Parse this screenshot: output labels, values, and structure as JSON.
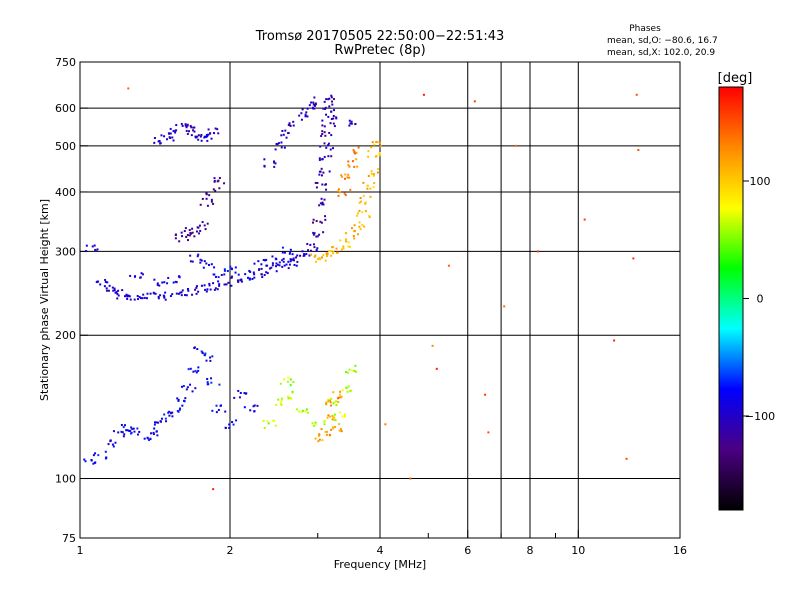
{
  "chart_data": {
    "type": "scatter",
    "title": "Tromsø 20170505 22:50:00−22:51:43",
    "subtitle": "RwPretec (8p)",
    "legend_text": {
      "heading": "Phases",
      "line1": "mean, sd,O: −80.6, 16.7",
      "line2": "mean, sd,X: 102.0, 20.9"
    },
    "xlabel": "Frequency [MHz]",
    "ylabel": "Stationary phase Virtual Height [km]",
    "xscale": "log",
    "yscale": "log",
    "xlim": [
      1,
      16
    ],
    "ylim": [
      75,
      750
    ],
    "grid": true,
    "xticks": [
      1,
      2,
      4,
      6,
      8,
      10,
      16
    ],
    "xtick_labels": [
      "1",
      "2",
      "4",
      "6",
      "8",
      "10",
      "16"
    ],
    "xminor": [
      3,
      5,
      7,
      9
    ],
    "xgrid": [
      2,
      4,
      6,
      7,
      8,
      10
    ],
    "yticks": [
      75,
      100,
      200,
      300,
      400,
      500,
      600,
      750
    ],
    "ytick_labels": [
      "75",
      "100",
      "200",
      "300",
      "400",
      "500",
      "600",
      "750"
    ],
    "ygrid": [
      100,
      200,
      300,
      400,
      500,
      600
    ],
    "colorbar": {
      "label": "[deg]",
      "ticks": [
        100,
        0,
        -100
      ],
      "tick_labels": [
        "100",
        "0",
        "−100"
      ],
      "range": [
        -180,
        180
      ],
      "colormap": [
        "#000000",
        "#4b0082",
        "#0000ff",
        "#00ffff",
        "#00ff00",
        "#ffff00",
        "#ff8800",
        "#ff0000"
      ]
    },
    "series": [
      {
        "trace": "O-mode F-layer trace (~240-300 km)",
        "phase_deg": -95,
        "points": [
          [
            1.05,
            305
          ],
          [
            1.1,
            258
          ],
          [
            1.14,
            250
          ],
          [
            1.18,
            246
          ],
          [
            1.22,
            243
          ],
          [
            1.28,
            241
          ],
          [
            1.35,
            241
          ],
          [
            1.42,
            241
          ],
          [
            1.5,
            242
          ],
          [
            1.58,
            244
          ],
          [
            1.66,
            247
          ],
          [
            1.75,
            250
          ],
          [
            1.85,
            253
          ],
          [
            1.95,
            257
          ],
          [
            2.05,
            261
          ],
          [
            2.15,
            264
          ],
          [
            2.25,
            268
          ],
          [
            2.35,
            272
          ],
          [
            2.45,
            276
          ],
          [
            2.55,
            280
          ],
          [
            2.65,
            285
          ],
          [
            2.75,
            291
          ],
          [
            2.85,
            299
          ]
        ]
      },
      {
        "trace": "O-mode lower bumps",
        "phase_deg": -90,
        "points": [
          [
            1.3,
            265
          ],
          [
            1.45,
            258
          ],
          [
            1.55,
            262
          ],
          [
            1.7,
            290
          ],
          [
            1.8,
            282
          ],
          [
            1.9,
            270
          ],
          [
            2.0,
            275
          ],
          [
            2.3,
            283
          ],
          [
            2.5,
            288
          ],
          [
            2.6,
            300
          ]
        ]
      },
      {
        "trace": "O-mode steep branch to 640 km",
        "phase_deg": -110,
        "points": [
          [
            2.95,
            305
          ],
          [
            3.0,
            325
          ],
          [
            3.02,
            350
          ],
          [
            3.05,
            380
          ],
          [
            3.07,
            410
          ],
          [
            3.1,
            440
          ],
          [
            3.12,
            470
          ],
          [
            3.13,
            500
          ],
          [
            3.14,
            530
          ],
          [
            3.15,
            560
          ],
          [
            3.15,
            600
          ],
          [
            3.14,
            630
          ]
        ]
      },
      {
        "trace": "O-mode second hop (~500-560 km)",
        "phase_deg": -100,
        "points": [
          [
            1.45,
            510
          ],
          [
            1.5,
            520
          ],
          [
            1.55,
            540
          ],
          [
            1.6,
            550
          ],
          [
            1.65,
            545
          ],
          [
            1.7,
            530
          ],
          [
            1.75,
            520
          ],
          [
            1.8,
            525
          ],
          [
            1.85,
            540
          ]
        ]
      },
      {
        "trace": "O-mode mid-height (~320-420 km)",
        "phase_deg": -120,
        "points": [
          [
            1.6,
            320
          ],
          [
            1.65,
            330
          ],
          [
            1.7,
            325
          ],
          [
            1.75,
            340
          ],
          [
            1.8,
            380
          ],
          [
            1.85,
            400
          ],
          [
            1.9,
            420
          ]
        ]
      },
      {
        "trace": "Upper oblique (~450-620 km)",
        "phase_deg": -105,
        "points": [
          [
            2.4,
            460
          ],
          [
            2.5,
            500
          ],
          [
            2.6,
            530
          ],
          [
            2.7,
            560
          ],
          [
            2.8,
            585
          ],
          [
            2.9,
            605
          ],
          [
            3.0,
            620
          ],
          [
            3.2,
            580
          ],
          [
            3.5,
            560
          ]
        ]
      },
      {
        "trace": "X-mode F-layer trace (~290-500 km)",
        "phase_deg": 110,
        "points": [
          [
            3.0,
            290
          ],
          [
            3.1,
            292
          ],
          [
            3.2,
            296
          ],
          [
            3.3,
            302
          ],
          [
            3.4,
            312
          ],
          [
            3.5,
            325
          ],
          [
            3.6,
            340
          ],
          [
            3.7,
            360
          ],
          [
            3.75,
            385
          ],
          [
            3.8,
            410
          ],
          [
            3.85,
            440
          ],
          [
            3.88,
            480
          ],
          [
            3.9,
            500
          ]
        ]
      },
      {
        "trace": "X-mode inner branch",
        "phase_deg": 130,
        "points": [
          [
            3.4,
            400
          ],
          [
            3.45,
            430
          ],
          [
            3.5,
            460
          ],
          [
            3.55,
            490
          ]
        ]
      },
      {
        "trace": "E/Es region (~110-190 km)",
        "phase_deg": -85,
        "points": [
          [
            1.05,
            108
          ],
          [
            1.1,
            112
          ],
          [
            1.15,
            118
          ],
          [
            1.2,
            125
          ],
          [
            1.25,
            128
          ],
          [
            1.3,
            126
          ],
          [
            1.35,
            122
          ],
          [
            1.4,
            125
          ],
          [
            1.45,
            130
          ],
          [
            1.5,
            135
          ],
          [
            1.55,
            140
          ],
          [
            1.6,
            145
          ],
          [
            1.65,
            155
          ],
          [
            1.7,
            170
          ],
          [
            1.75,
            185
          ],
          [
            1.8,
            180
          ],
          [
            1.85,
            160
          ],
          [
            1.9,
            140
          ],
          [
            2.0,
            130
          ],
          [
            2.1,
            150
          ],
          [
            2.2,
            140
          ]
        ]
      },
      {
        "trace": "Mixed phase (~120-180 km)",
        "phase_deg": 60,
        "points": [
          [
            2.4,
            130
          ],
          [
            2.5,
            145
          ],
          [
            2.6,
            160
          ],
          [
            2.7,
            150
          ],
          [
            2.8,
            140
          ],
          [
            3.0,
            130
          ],
          [
            3.2,
            145
          ],
          [
            3.3,
            135
          ],
          [
            3.4,
            155
          ],
          [
            3.5,
            170
          ]
        ]
      },
      {
        "trace": "Orange low patch (~120-150 km)",
        "phase_deg": 120,
        "points": [
          [
            3.05,
            122
          ],
          [
            3.1,
            125
          ],
          [
            3.15,
            135
          ],
          [
            3.2,
            145
          ],
          [
            3.25,
            150
          ],
          [
            3.3,
            128
          ]
        ]
      },
      {
        "trace": "Scattered noise",
        "phase_deg": 150,
        "points": [
          [
            1.25,
            660
          ],
          [
            1.85,
            95
          ],
          [
            4.6,
            100
          ],
          [
            5.1,
            190
          ],
          [
            5.5,
            280
          ],
          [
            6.6,
            125
          ],
          [
            7.1,
            230
          ],
          [
            8.3,
            300
          ],
          [
            11.8,
            195
          ],
          [
            12.5,
            110
          ],
          [
            12.9,
            290
          ],
          [
            13.1,
            640
          ],
          [
            13.2,
            490
          ],
          [
            7.5,
            500
          ],
          [
            6.2,
            620
          ],
          [
            4.1,
            130
          ],
          [
            4.9,
            640
          ],
          [
            5.2,
            170
          ],
          [
            10.3,
            350
          ],
          [
            6.5,
            150
          ]
        ]
      }
    ]
  }
}
